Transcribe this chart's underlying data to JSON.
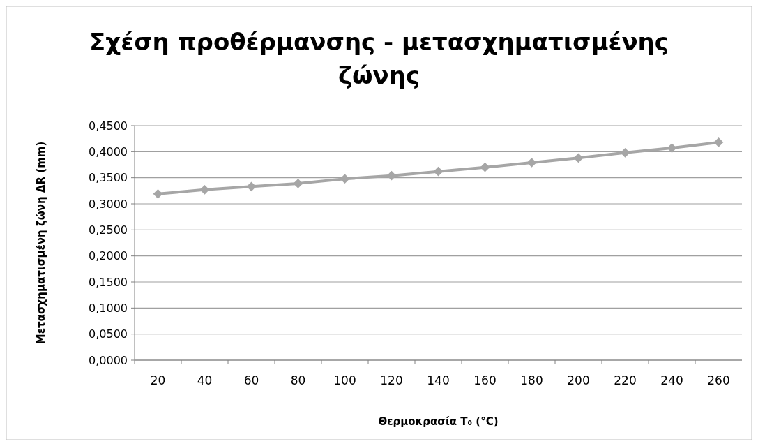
{
  "chart_data": {
    "type": "line",
    "title": "Σχέση προθέρμανσης - μετασχηματισμένης ζώνης",
    "xlabel": "Θερμοκρασία T₀ (°C)",
    "ylabel": "Μετασχηματισμένη ζώνη ΔR (mm)",
    "categories": [
      "20",
      "40",
      "60",
      "80",
      "100",
      "120",
      "140",
      "160",
      "180",
      "200",
      "220",
      "240",
      "260"
    ],
    "series": [
      {
        "color": "#a6a6a6",
        "values": [
          0.319,
          0.327,
          0.333,
          0.339,
          0.348,
          0.354,
          0.362,
          0.37,
          0.379,
          0.388,
          0.398,
          0.407,
          0.418
        ]
      }
    ],
    "ylim": [
      0,
      0.45
    ],
    "yticks": [
      {
        "value": 0,
        "label": "0,0000"
      },
      {
        "value": 0.05,
        "label": "0,0500"
      },
      {
        "value": 0.1,
        "label": "0,1000"
      },
      {
        "value": 0.15,
        "label": "0,1500"
      },
      {
        "value": 0.2,
        "label": "0,2000"
      },
      {
        "value": 0.25,
        "label": "0,2500"
      },
      {
        "value": 0.3,
        "label": "0,3000"
      },
      {
        "value": 0.35,
        "label": "0,3500"
      },
      {
        "value": 0.4,
        "label": "0,4000"
      },
      {
        "value": 0.45,
        "label": "0,4500"
      }
    ],
    "grid": "y",
    "marker": "diamond",
    "line_style": "solid"
  }
}
